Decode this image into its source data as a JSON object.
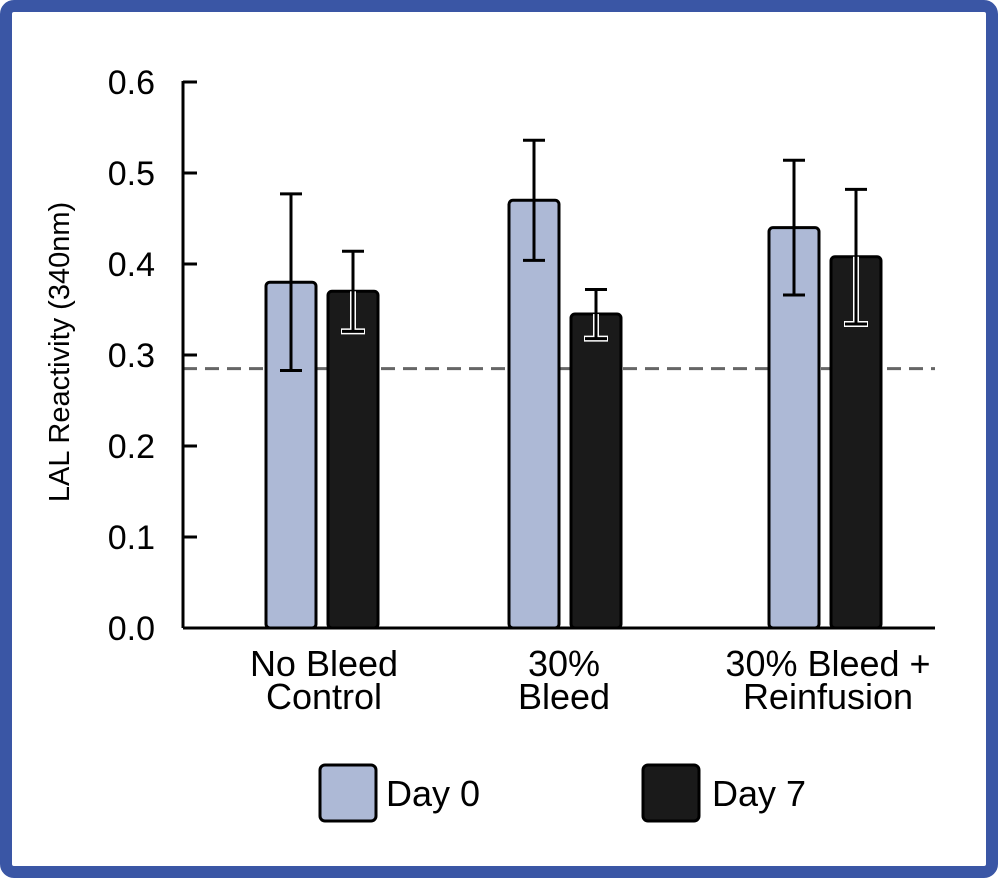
{
  "colors": {
    "frame": "#3a56a5",
    "day0": "#adb9d6",
    "day7": "#1a1a1a",
    "stroke": "#000000",
    "threshold": "#666666"
  },
  "chart_data": {
    "type": "bar",
    "title": "",
    "xlabel": "",
    "ylabel": "LAL Reactivity (340nm)",
    "ylim": [
      0.0,
      0.6
    ],
    "yticks": [
      "0.0",
      "0.1",
      "0.2",
      "0.3",
      "0.4",
      "0.5",
      "0.6"
    ],
    "grid": false,
    "legend_position": "bottom",
    "categories": [
      [
        "No Bleed",
        "Control"
      ],
      [
        "30%",
        "Bleed"
      ],
      [
        "30% Bleed +",
        "Reinfusion"
      ]
    ],
    "series": [
      {
        "name": "Day 0",
        "values": [
          0.38,
          0.47,
          0.44
        ],
        "error": [
          0.097,
          0.066,
          0.074
        ]
      },
      {
        "name": "Day 7",
        "values": [
          0.37,
          0.345,
          0.408
        ],
        "error": [
          0.044,
          0.027,
          0.074
        ]
      }
    ],
    "reference_line": {
      "value": 0.285,
      "style": "dashed"
    }
  }
}
